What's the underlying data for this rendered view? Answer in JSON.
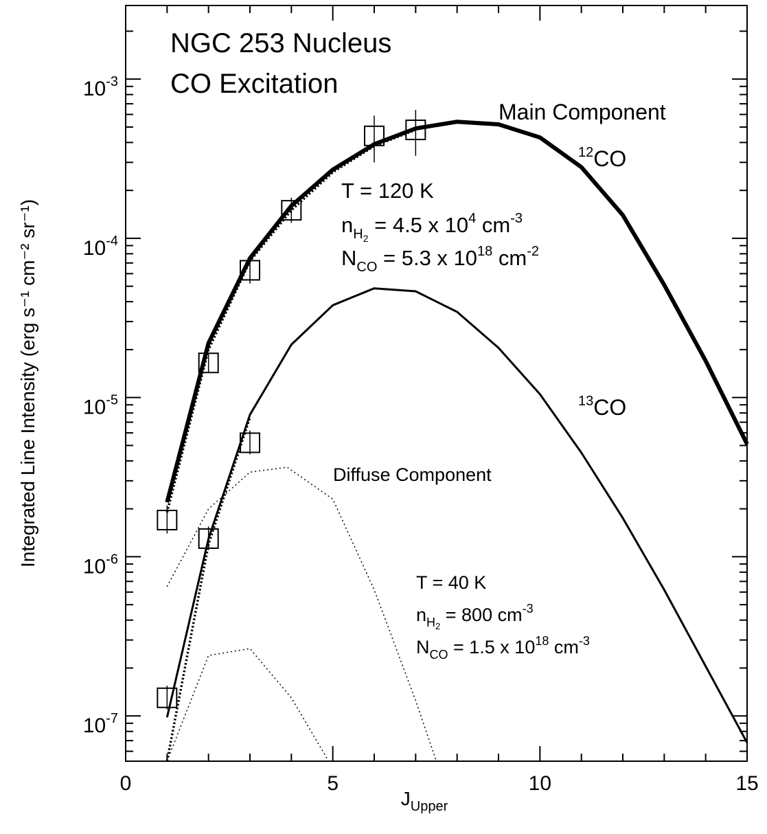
{
  "chart_data": {
    "type": "line",
    "title": [
      "NGC 253 Nucleus",
      "CO Excitation"
    ],
    "xlabel": "J",
    "xlabel_sub": "Upper",
    "ylabel": "Integrated Line Intensity (erg s⁻¹ cm⁻² sr⁻¹)",
    "yscale": "log",
    "xlim": [
      0,
      15
    ],
    "ylim": [
      5.2e-08,
      0.0029
    ],
    "grid": false,
    "x_ticks": [
      {
        "value": 0,
        "label": "0"
      },
      {
        "value": 5,
        "label": "5"
      },
      {
        "value": 10,
        "label": "10"
      },
      {
        "value": 15,
        "label": "15"
      }
    ],
    "y_ticks": [
      {
        "value": 1e-07,
        "base": "10",
        "exp": "-7"
      },
      {
        "value": 1e-06,
        "base": "10",
        "exp": "-6"
      },
      {
        "value": 1e-05,
        "base": "10",
        "exp": "-5"
      },
      {
        "value": 0.0001,
        "base": "10",
        "exp": "-4"
      },
      {
        "value": 0.001,
        "base": "10",
        "exp": "-3"
      }
    ],
    "series": [
      {
        "name": "12CO main component",
        "style": "thick",
        "x": [
          1,
          2,
          3,
          4,
          5,
          6,
          7,
          8,
          9,
          10,
          11,
          12,
          13,
          14,
          15
        ],
        "y": [
          2.2e-06,
          2.2e-05,
          7.5e-05,
          0.00016,
          0.00027,
          0.00039,
          0.00049,
          0.00054,
          0.00052,
          0.00043,
          0.00028,
          0.00014,
          5.1e-05,
          1.7e-05,
          5.1e-06
        ]
      },
      {
        "name": "12CO total (main + diffuse)",
        "style": "dotted-bold",
        "x": [
          1,
          2,
          3,
          4,
          5,
          6,
          7
        ],
        "y": [
          1.9e-06,
          2e-05,
          7.2e-05,
          0.00015,
          0.00026,
          0.00038,
          0.00048
        ]
      },
      {
        "name": "13CO main component",
        "style": "solid",
        "x": [
          1,
          2,
          3,
          4,
          5,
          6,
          7,
          8,
          9,
          10,
          11,
          12,
          13,
          14,
          15
        ],
        "y": [
          9.8e-08,
          1.3e-06,
          7.8e-06,
          2.15e-05,
          3.8e-05,
          4.85e-05,
          4.65e-05,
          3.45e-05,
          2.05e-05,
          1.05e-05,
          4.5e-06,
          1.75e-06,
          6.2e-07,
          2.05e-07,
          6.8e-08
        ]
      },
      {
        "name": "13CO total (main + diffuse)",
        "style": "dotted-bold",
        "x": [
          1,
          2,
          3
        ],
        "y": [
          5.2e-08,
          1.2e-06,
          7.5e-06
        ]
      },
      {
        "name": "12CO diffuse component",
        "style": "dotted",
        "x": [
          1,
          2,
          2.5,
          3,
          3.9,
          5,
          6,
          7,
          7.5
        ],
        "y": [
          6.5e-07,
          2e-06,
          2.6e-06,
          3.4e-06,
          3.65e-06,
          2.3e-06,
          6.2e-07,
          1.25e-07,
          5.2e-08
        ]
      },
      {
        "name": "13CO diffuse component",
        "style": "dotted",
        "x": [
          1,
          2,
          3,
          4,
          4.9
        ],
        "y": [
          5.2e-08,
          2.4e-07,
          2.65e-07,
          1.3e-07,
          5.2e-08
        ]
      }
    ],
    "observations": [
      {
        "name": "12CO data",
        "points": [
          {
            "j": 1,
            "value": 1.7e-06,
            "err_lo": 1.4e-06,
            "err_hi": 2.1e-06
          },
          {
            "j": 2,
            "value": 1.65e-05,
            "err_lo": 1.45e-05,
            "err_hi": 1.9e-05
          },
          {
            "j": 3,
            "value": 6.3e-05,
            "err_lo": 5.2e-05,
            "err_hi": 7.6e-05
          },
          {
            "j": 4,
            "value": 0.00015,
            "err_lo": 0.000125,
            "err_hi": 0.00018
          },
          {
            "j": 6,
            "value": 0.00044,
            "err_lo": 0.0003,
            "err_hi": 0.00059
          },
          {
            "j": 7,
            "value": 0.00048,
            "err_lo": 0.00033,
            "err_hi": 0.00064
          }
        ]
      },
      {
        "name": "13CO data",
        "points": [
          {
            "j": 1,
            "value": 1.3e-07,
            "err_lo": 1.1e-07,
            "err_hi": 1.55e-07
          },
          {
            "j": 2,
            "value": 1.3e-06,
            "err_lo": 1.1e-06,
            "err_hi": 1.55e-06
          },
          {
            "j": 3,
            "value": 5.2e-06,
            "err_lo": 4.4e-06,
            "err_hi": 6.2e-06
          }
        ]
      }
    ],
    "annotations": {
      "main_component": "Main Component",
      "co12": {
        "sup": "12",
        "text": "CO"
      },
      "co13": {
        "sup": "13",
        "text": "CO"
      },
      "diffuse_component": "Diffuse Component",
      "main_params": {
        "temperature": "T = 120 K",
        "density_prefix": "n",
        "density_sub": "H",
        "density_sub2": "2",
        "density_value": " = 4.5 x 10",
        "density_exp": "4",
        "density_unit": " cm",
        "density_unit_exp": "-3",
        "column_prefix": "N",
        "column_sub": "CO",
        "column_value": " = 5.3 x 10",
        "column_exp": "18",
        "column_unit": " cm",
        "column_unit_exp": "-2"
      },
      "diffuse_params": {
        "temperature": "T =  40 K",
        "density_prefix": "n",
        "density_sub": "H",
        "density_sub2": "2",
        "density_value": " = 800 cm",
        "density_exp": "-3",
        "column_prefix": "N",
        "column_sub": "CO",
        "column_value": " = 1.5 x 10",
        "column_exp": "18",
        "column_unit": " cm",
        "column_unit_exp": "-3"
      }
    }
  }
}
